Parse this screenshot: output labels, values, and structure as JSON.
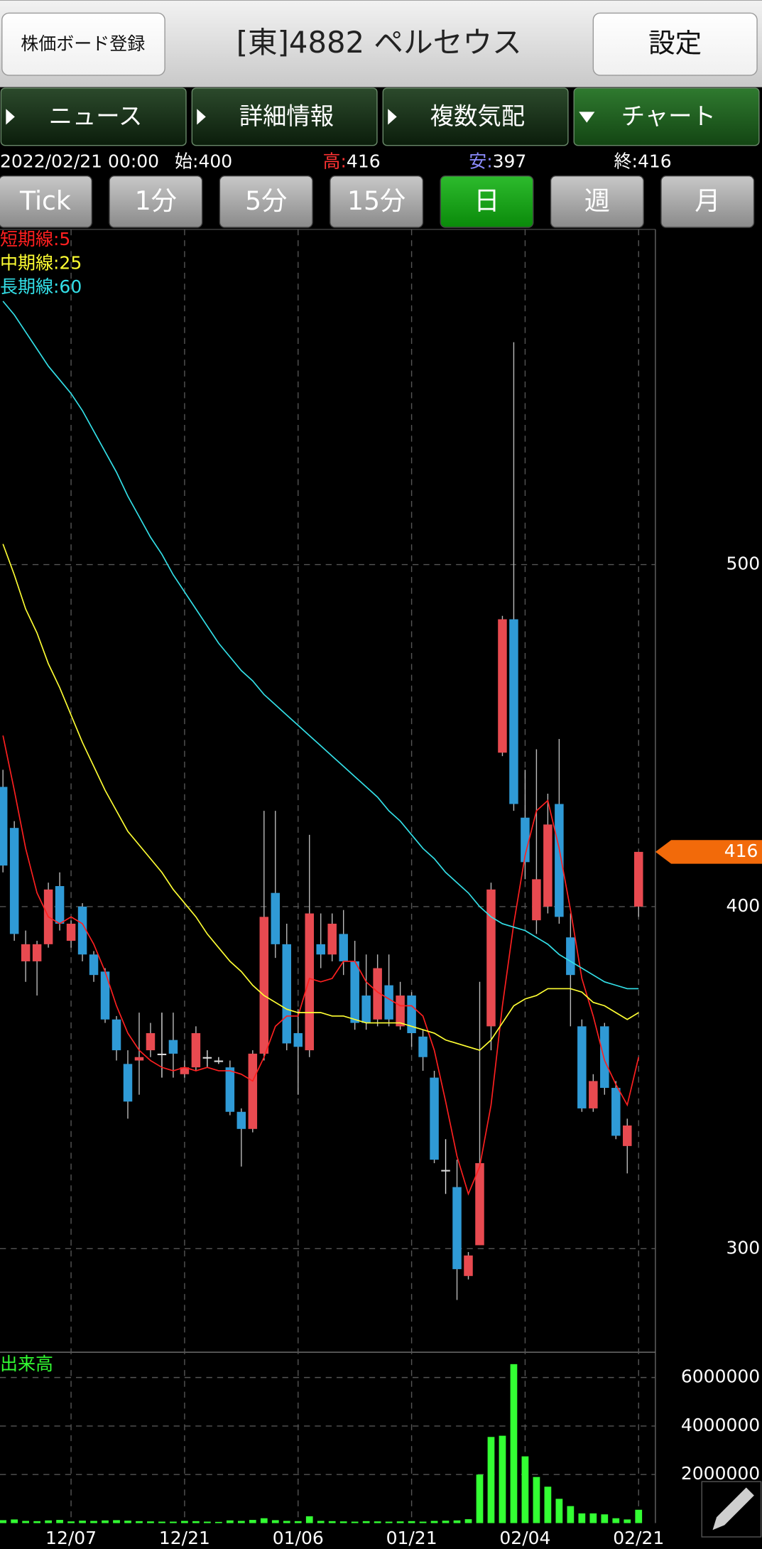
{
  "header": {
    "board_button": "株価ボード登録",
    "title": "[東]4882 ペルセウス",
    "settings_button": "設定"
  },
  "tabs": [
    {
      "label": "ニュース"
    },
    {
      "label": "詳細情報"
    },
    {
      "label": "複数気配"
    },
    {
      "label": "チャート",
      "selected": true
    }
  ],
  "quote": {
    "datetime": "2022/02/21 00:00",
    "items": [
      {
        "label": "始:",
        "value": 400,
        "color": "#ffffff"
      },
      {
        "label": "高:",
        "value": 416,
        "color": "#ff3333"
      },
      {
        "label": "安:",
        "value": 397,
        "color": "#8c8cff"
      },
      {
        "label": "終:",
        "value": 416,
        "color": "#ffffff"
      }
    ]
  },
  "periods": [
    {
      "label": "Tick"
    },
    {
      "label": "1分"
    },
    {
      "label": "5分"
    },
    {
      "label": "15分"
    },
    {
      "label": "日",
      "selected": true
    },
    {
      "label": "週"
    },
    {
      "label": "月"
    }
  ],
  "chart_data": {
    "type": "candlestick",
    "categories": [
      null,
      null,
      null,
      null,
      null,
      null,
      "12/07",
      null,
      null,
      null,
      null,
      null,
      null,
      null,
      null,
      null,
      "12/21",
      null,
      null,
      null,
      null,
      null,
      null,
      null,
      null,
      null,
      "01/06",
      null,
      null,
      null,
      null,
      null,
      null,
      null,
      null,
      null,
      "01/21",
      null,
      null,
      null,
      null,
      null,
      null,
      null,
      null,
      null,
      "02/04",
      null,
      null,
      null,
      null,
      null,
      null,
      null,
      null,
      null,
      "02/21"
    ],
    "open": [
      435,
      423,
      384,
      384,
      389,
      406,
      390,
      400,
      386,
      381,
      367,
      354,
      355,
      358,
      357,
      361,
      351,
      353,
      356,
      355,
      353,
      340,
      335,
      357,
      404,
      389,
      363,
      358,
      389,
      386,
      392,
      384,
      374,
      367,
      377,
      365,
      374,
      362,
      350,
      323,
      318,
      292,
      301,
      365,
      445,
      484,
      426,
      396,
      400,
      430,
      391,
      365,
      341,
      365,
      347,
      330,
      400
    ],
    "high": [
      440,
      425,
      393,
      390,
      407,
      410,
      396,
      401,
      387,
      382,
      368,
      358,
      369,
      366,
      369,
      369,
      355,
      365,
      358,
      356,
      355,
      341,
      358,
      428,
      428,
      395,
      370,
      421,
      398,
      398,
      399,
      390,
      386,
      386,
      386,
      378,
      375,
      364,
      352,
      332,
      326,
      299,
      378,
      407,
      485,
      565,
      440,
      446,
      433,
      449,
      398,
      367,
      351,
      366,
      349,
      338,
      416
    ],
    "low": [
      410,
      390,
      378,
      374,
      388,
      393,
      388,
      384,
      378,
      366,
      355,
      338,
      345,
      356,
      350,
      350,
      350,
      352,
      353,
      354,
      339,
      324,
      334,
      355,
      385,
      358,
      345,
      356,
      382,
      384,
      380,
      364,
      364,
      365,
      365,
      364,
      359,
      352,
      325,
      316,
      285,
      291,
      301,
      358,
      444,
      428,
      408,
      392,
      398,
      395,
      365,
      340,
      340,
      345,
      332,
      322,
      397
    ],
    "close": [
      412,
      392,
      389,
      389,
      405,
      395,
      395,
      386,
      380,
      367,
      358,
      343,
      356,
      363,
      357,
      357,
      353,
      363,
      356,
      355,
      340,
      335,
      357,
      397,
      389,
      360,
      359,
      398,
      386,
      395,
      384,
      366,
      366,
      382,
      367,
      374,
      363,
      356,
      326,
      323,
      294,
      298,
      325,
      405,
      484,
      430,
      413,
      408,
      424,
      397,
      380,
      341,
      349,
      347,
      333,
      336,
      416
    ],
    "up_color": "#e84a50",
    "down_color": "#2f9ad6",
    "doji_color": "#dddddd",
    "ylim": [
      270,
      598
    ],
    "yticks": [
      300,
      400,
      500
    ],
    "grid": true,
    "last_price_color": "#f26a0a",
    "moving_averages": [
      {
        "name": "短期線:5",
        "color": "#ff2020",
        "values": [
          450,
          434,
          417,
          404,
          397,
          395,
          397,
          395,
          389,
          381,
          371,
          363,
          358,
          355,
          353,
          352,
          353,
          352,
          353,
          352,
          352,
          351,
          349,
          356,
          365,
          368,
          368,
          379,
          378,
          379,
          384,
          384,
          378,
          375,
          373,
          371,
          371,
          368,
          358,
          343,
          327,
          316,
          324,
          342,
          371,
          395,
          415,
          428,
          431,
          417,
          399,
          379,
          368,
          355,
          348,
          342,
          356
        ]
      },
      {
        "name": "中期線:25",
        "color": "#ffff33",
        "values": [
          506,
          497,
          487,
          480,
          471,
          464,
          456,
          448,
          441,
          434,
          428,
          422,
          418,
          414,
          410,
          405,
          401,
          397,
          392,
          388,
          384,
          381,
          377,
          374,
          372,
          370,
          369,
          369,
          369,
          368,
          368,
          367,
          366,
          366,
          366,
          366,
          365,
          364,
          363,
          361,
          360,
          359,
          358,
          361,
          366,
          371,
          373,
          374,
          376,
          376,
          376,
          375,
          372,
          371,
          369,
          367,
          369
        ]
      },
      {
        "name": "長期線:60",
        "color": "#33e0e8",
        "values": [
          577,
          573,
          568,
          563,
          558,
          554,
          550,
          545,
          539,
          533,
          527,
          520,
          514,
          508,
          503,
          497,
          492,
          487,
          482,
          477,
          473,
          469,
          466,
          462,
          459,
          456,
          453,
          450,
          447,
          444,
          441,
          438,
          435,
          432,
          428,
          425,
          421,
          417,
          414,
          410,
          407,
          404,
          400,
          397,
          395,
          394,
          393,
          391,
          389,
          386,
          384,
          382,
          380,
          378,
          377,
          376,
          376
        ]
      }
    ],
    "volume": {
      "title": "出来高",
      "color": "#33ff33",
      "values": [
        120000,
        150000,
        90000,
        80000,
        110000,
        130000,
        70000,
        100000,
        90000,
        110000,
        120000,
        100000,
        80000,
        70000,
        60000,
        60000,
        90000,
        80000,
        60000,
        50000,
        110000,
        90000,
        130000,
        200000,
        120000,
        90000,
        80000,
        280000,
        90000,
        80000,
        70000,
        60000,
        80000,
        70000,
        60000,
        70000,
        80000,
        60000,
        90000,
        100000,
        110000,
        160000,
        2000000,
        3550000,
        3600000,
        6550000,
        2750000,
        1900000,
        1500000,
        1000000,
        700000,
        400000,
        400000,
        360000,
        200000,
        150000,
        550000
      ],
      "ylim": [
        0,
        7000000
      ],
      "yticks": [
        2000000,
        4000000,
        6000000
      ]
    }
  }
}
